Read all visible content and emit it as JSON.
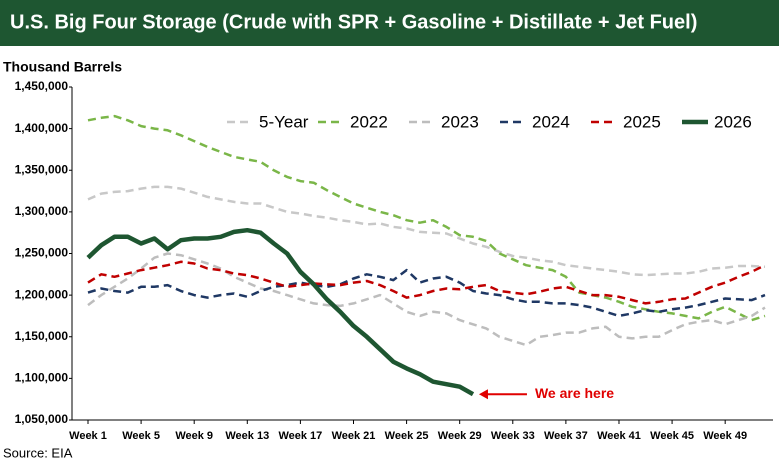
{
  "chart_data": {
    "type": "line",
    "title": "U.S. Big Four Storage (Crude with SPR + Gasoline + Distillate + Jet Fuel)",
    "y_label": "Thousand Barrels",
    "source": "Source: EIA",
    "annotation": "We are here",
    "annotation_color": "#e00000",
    "legend": "top-right",
    "x": [
      1,
      2,
      3,
      4,
      5,
      6,
      7,
      8,
      9,
      10,
      11,
      12,
      13,
      14,
      15,
      16,
      17,
      18,
      19,
      20,
      21,
      22,
      23,
      24,
      25,
      26,
      27,
      28,
      29,
      30,
      31,
      32,
      33,
      34,
      35,
      36,
      37,
      38,
      39,
      40,
      41,
      42,
      43,
      44,
      45,
      46,
      47,
      48,
      49,
      50,
      51,
      52
    ],
    "xlim": [
      1,
      52
    ],
    "xticks": [
      {
        "value": 1,
        "label": "Week 1"
      },
      {
        "value": 5,
        "label": "Week 5"
      },
      {
        "value": 9,
        "label": "Week 9"
      },
      {
        "value": 13,
        "label": "Week 13"
      },
      {
        "value": 17,
        "label": "Week 17"
      },
      {
        "value": 21,
        "label": "Week 21"
      },
      {
        "value": 25,
        "label": "Week 25"
      },
      {
        "value": 29,
        "label": "Week 29"
      },
      {
        "value": 33,
        "label": "Week 33"
      },
      {
        "value": 37,
        "label": "Week 37"
      },
      {
        "value": 41,
        "label": "Week 41"
      },
      {
        "value": 45,
        "label": "Week 45"
      },
      {
        "value": 49,
        "label": "Week 49"
      }
    ],
    "ylim": [
      1050000,
      1450000
    ],
    "yticks": [
      {
        "value": 1050000,
        "label": "1,050,000"
      },
      {
        "value": 1100000,
        "label": "1,100,000"
      },
      {
        "value": 1150000,
        "label": "1,150,000"
      },
      {
        "value": 1200000,
        "label": "1,200,000"
      },
      {
        "value": 1250000,
        "label": "1,250,000"
      },
      {
        "value": 1300000,
        "label": "1,300,000"
      },
      {
        "value": 1350000,
        "label": "1,350,000"
      },
      {
        "value": 1400000,
        "label": "1,400,000"
      },
      {
        "value": 1450000,
        "label": "1,450,000"
      }
    ],
    "series": [
      {
        "name": "5-Year",
        "color": "#c8c8c8",
        "dashed": true,
        "values": [
          1315000,
          1322000,
          1324000,
          1325000,
          1328000,
          1330000,
          1330000,
          1328000,
          1323000,
          1318000,
          1315000,
          1312000,
          1310000,
          1310000,
          1305000,
          1300000,
          1298000,
          1295000,
          1293000,
          1290000,
          1288000,
          1285000,
          1286000,
          1282000,
          1280000,
          1276000,
          1275000,
          1274000,
          1268000,
          1262000,
          1258000,
          1252000,
          1247000,
          1245000,
          1242000,
          1240000,
          1236000,
          1234000,
          1232000,
          1230000,
          1228000,
          1225000,
          1224000,
          1225000,
          1226000,
          1226000,
          1228000,
          1232000,
          1233000,
          1235000,
          1235000,
          1234000
        ]
      },
      {
        "name": "2022",
        "color": "#7ab648",
        "dashed": true,
        "values": [
          1410000,
          1413000,
          1415000,
          1410000,
          1403000,
          1400000,
          1398000,
          1392000,
          1385000,
          1378000,
          1372000,
          1366000,
          1363000,
          1360000,
          1350000,
          1342000,
          1337000,
          1335000,
          1326000,
          1318000,
          1310000,
          1305000,
          1300000,
          1296000,
          1290000,
          1287000,
          1290000,
          1282000,
          1272000,
          1270000,
          1265000,
          1250000,
          1243000,
          1236000,
          1233000,
          1230000,
          1222000,
          1203000,
          1200000,
          1197000,
          1192000,
          1186000,
          1183000,
          1180000,
          1178000,
          1175000,
          1172000,
          1180000,
          1186000,
          1178000,
          1170000,
          1175000
        ]
      },
      {
        "name": "2023",
        "color": "#bdbdbd",
        "dashed": true,
        "values": [
          1188000,
          1200000,
          1210000,
          1220000,
          1232000,
          1245000,
          1250000,
          1248000,
          1243000,
          1238000,
          1232000,
          1222000,
          1215000,
          1208000,
          1205000,
          1200000,
          1195000,
          1190000,
          1188000,
          1187000,
          1190000,
          1195000,
          1200000,
          1190000,
          1180000,
          1175000,
          1180000,
          1178000,
          1170000,
          1165000,
          1160000,
          1150000,
          1145000,
          1140000,
          1150000,
          1152000,
          1155000,
          1155000,
          1160000,
          1162000,
          1150000,
          1148000,
          1150000,
          1150000,
          1158000,
          1165000,
          1168000,
          1170000,
          1165000,
          1170000,
          1175000,
          1185000
        ]
      },
      {
        "name": "2024",
        "color": "#1f3864",
        "dashed": true,
        "values": [
          1203000,
          1208000,
          1205000,
          1203000,
          1210000,
          1210000,
          1212000,
          1205000,
          1200000,
          1197000,
          1200000,
          1202000,
          1198000,
          1205000,
          1210000,
          1212000,
          1215000,
          1212000,
          1210000,
          1213000,
          1220000,
          1225000,
          1222000,
          1218000,
          1230000,
          1215000,
          1220000,
          1222000,
          1215000,
          1205000,
          1202000,
          1200000,
          1195000,
          1192000,
          1192000,
          1190000,
          1190000,
          1188000,
          1185000,
          1180000,
          1175000,
          1178000,
          1182000,
          1180000,
          1183000,
          1185000,
          1188000,
          1192000,
          1196000,
          1195000,
          1194000,
          1200000
        ]
      },
      {
        "name": "2025",
        "color": "#c00000",
        "dashed": true,
        "values": [
          1215000,
          1225000,
          1222000,
          1226000,
          1230000,
          1233000,
          1236000,
          1240000,
          1238000,
          1232000,
          1230000,
          1226000,
          1224000,
          1220000,
          1215000,
          1210000,
          1212000,
          1214000,
          1213000,
          1212000,
          1215000,
          1217000,
          1212000,
          1205000,
          1197000,
          1200000,
          1205000,
          1208000,
          1207000,
          1210000,
          1212000,
          1205000,
          1203000,
          1201000,
          1204000,
          1208000,
          1210000,
          1205000,
          1200000,
          1200000,
          1198000,
          1194000,
          1190000,
          1192000,
          1195000,
          1196000,
          1203000,
          1210000,
          1215000,
          1222000,
          1228000,
          1236000
        ]
      },
      {
        "name": "2026",
        "color": "#1e5631",
        "dashed": false,
        "values": [
          1245000,
          1260000,
          1270000,
          1270000,
          1262000,
          1268000,
          1255000,
          1266000,
          1268000,
          1268000,
          1270000,
          1276000,
          1278000,
          1275000,
          1262000,
          1250000,
          1228000,
          1213000,
          1195000,
          1180000,
          1163000,
          1150000,
          1135000,
          1120000,
          1112000,
          1105000,
          1096000,
          1093000,
          1090000,
          1081000,
          null,
          null,
          null,
          null,
          null,
          null,
          null,
          null,
          null,
          null,
          null,
          null,
          null,
          null,
          null,
          null,
          null,
          null,
          null,
          null,
          null,
          null
        ]
      }
    ]
  }
}
